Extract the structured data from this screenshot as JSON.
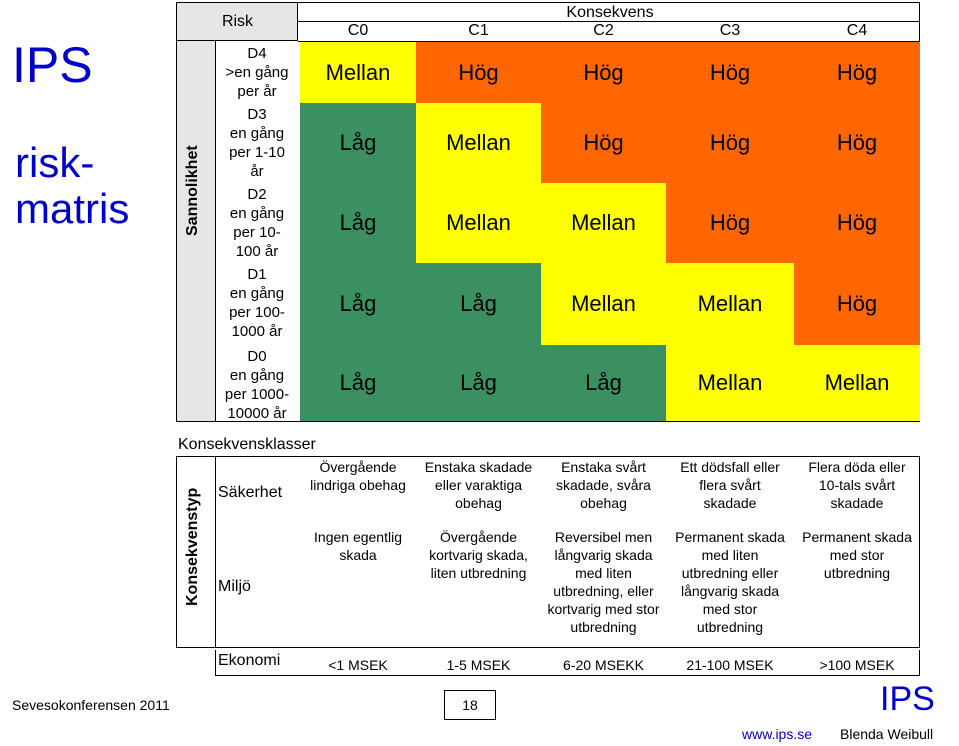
{
  "side_title": {
    "ips": "IPS",
    "line1": "risk-",
    "line2": "matris"
  },
  "axis": {
    "likelihood": "Sannolikhet",
    "consequence_type": "Konsekvenstyp"
  },
  "header": {
    "risk": "Risk",
    "consequence": "Konsekvens",
    "columns": [
      "C0",
      "C1",
      "C2",
      "C3",
      "C4"
    ]
  },
  "rows": [
    {
      "level": "D4",
      "freq": [
        ">en gång",
        "per år"
      ],
      "cells": [
        {
          "text": "Mellan",
          "color": "#ffff00"
        },
        {
          "text": "Hög",
          "color": "#ff6600"
        },
        {
          "text": "Hög",
          "color": "#ff6600"
        },
        {
          "text": "Hög",
          "color": "#ff6600"
        },
        {
          "text": "Hög",
          "color": "#ff6600"
        }
      ]
    },
    {
      "level": "D3",
      "freq": [
        "en gång",
        "per 1-10",
        "år"
      ],
      "cells": [
        {
          "text": "Låg",
          "color": "#3a9060"
        },
        {
          "text": "Mellan",
          "color": "#ffff00"
        },
        {
          "text": "Hög",
          "color": "#ff6600"
        },
        {
          "text": "Hög",
          "color": "#ff6600"
        },
        {
          "text": "Hög",
          "color": "#ff6600"
        }
      ]
    },
    {
      "level": "D2",
      "freq": [
        "en gång",
        "per 10-",
        "100 år"
      ],
      "cells": [
        {
          "text": "Låg",
          "color": "#3a9060"
        },
        {
          "text": "Mellan",
          "color": "#ffff00"
        },
        {
          "text": "Mellan",
          "color": "#ffff00"
        },
        {
          "text": "Hög",
          "color": "#ff6600"
        },
        {
          "text": "Hög",
          "color": "#ff6600"
        }
      ]
    },
    {
      "level": "D1",
      "freq": [
        "en gång",
        "per 100-",
        "1000 år"
      ],
      "cells": [
        {
          "text": "Låg",
          "color": "#3a9060"
        },
        {
          "text": "Låg",
          "color": "#3a9060"
        },
        {
          "text": "Mellan",
          "color": "#ffff00"
        },
        {
          "text": "Mellan",
          "color": "#ffff00"
        },
        {
          "text": "Hög",
          "color": "#ff6600"
        }
      ]
    },
    {
      "level": "D0",
      "freq": [
        "en gång",
        "per 1000-",
        "10000 år"
      ],
      "cells": [
        {
          "text": "Låg",
          "color": "#3a9060"
        },
        {
          "text": "Låg",
          "color": "#3a9060"
        },
        {
          "text": "Låg",
          "color": "#3a9060"
        },
        {
          "text": "Mellan",
          "color": "#ffff00"
        },
        {
          "text": "Mellan",
          "color": "#ffff00"
        }
      ]
    }
  ],
  "classes_title": "Konsekvensklasser",
  "safety": {
    "label": "Säkerhet",
    "items": [
      [
        "Övergående",
        "lindriga obehag"
      ],
      [
        "Enstaka skadade",
        "eller varaktiga",
        "obehag"
      ],
      [
        "Enstaka svårt",
        "skadade, svåra",
        "obehag"
      ],
      [
        "Ett dödsfall eller",
        "flera svårt",
        "skadade"
      ],
      [
        "Flera döda eller",
        "10-tals svårt",
        "skadade"
      ]
    ]
  },
  "environment": {
    "label": "Miljö",
    "items": [
      [
        "Ingen egentlig",
        "skada"
      ],
      [
        "Övergående",
        "kortvarig skada,",
        "liten utbredning"
      ],
      [
        "Reversibel men",
        "långvarig skada",
        "med liten",
        "utbredning, eller",
        "kortvarig med stor",
        "utbredning"
      ],
      [
        "Permanent skada",
        "med liten",
        "utbredning eller",
        "långvarig skada",
        "med stor",
        "utbredning"
      ],
      [
        "Permanent skada",
        "med stor",
        "utbredning"
      ]
    ]
  },
  "economy": {
    "label": "Ekonomi",
    "items": [
      "<1 MSEK",
      "1-5 MSEK",
      "6-20 MSEKK",
      "21-100 MSEK",
      ">100 MSEK"
    ]
  },
  "footer": {
    "conference": "Sevesokonferensen 2011",
    "page": "18",
    "ips": "IPS",
    "url": "www.ips.se",
    "author": "Blenda Weibull"
  }
}
